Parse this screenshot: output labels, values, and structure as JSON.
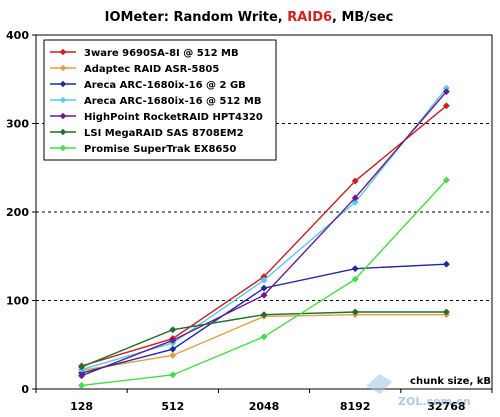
{
  "chart_data": {
    "type": "line",
    "title_parts": {
      "prefix": "IOMeter: Random Write, ",
      "highlight": "RAID6",
      "suffix": ", MB/sec"
    },
    "xlabel": "chunk size, kB",
    "ylabel": "",
    "x": [
      "128",
      "512",
      "2048",
      "8192",
      "32768"
    ],
    "ylim": [
      0,
      400
    ],
    "yticks": [
      0,
      100,
      200,
      300,
      400
    ],
    "grid": "dashed horizontal at 100, 200, 300",
    "legend_placement": "top-left",
    "series": [
      {
        "name": "3ware 9690SA-8I @ 512 MB",
        "color": "#cc1f1f",
        "values": [
          26,
          57,
          127,
          235,
          320
        ]
      },
      {
        "name": "Adaptec RAID ASR-5805",
        "color": "#e0a040",
        "values": [
          21,
          38,
          82,
          84,
          84
        ]
      },
      {
        "name": "Areca ARC-1680ix-16 @ 2 GB",
        "color": "#1f2aa6",
        "values": [
          18,
          45,
          114,
          136,
          141
        ]
      },
      {
        "name": "Areca ARC-1680ix-16 @ 512 MB",
        "color": "#55ccee",
        "values": [
          22,
          52,
          123,
          211,
          340
        ]
      },
      {
        "name": "HighPoint RocketRAID HPT4320",
        "color": "#6a1a8a",
        "values": [
          15,
          55,
          106,
          216,
          336
        ]
      },
      {
        "name": "LSI MegaRAID SAS 8708EM2",
        "color": "#1f6f2a",
        "values": [
          25,
          67,
          84,
          87,
          87
        ]
      },
      {
        "name": "Promise SuperTrak EX8650",
        "color": "#44dd44",
        "values": [
          4,
          16,
          59,
          124,
          236
        ]
      }
    ]
  },
  "watermark": "ZOL.com.cn"
}
